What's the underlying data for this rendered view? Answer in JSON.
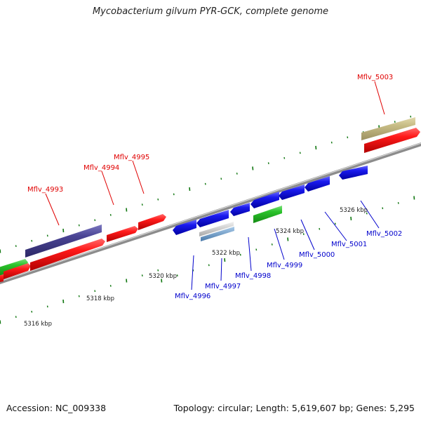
{
  "title": "Mycobacterium gilvum PYR-GCK, complete genome",
  "footer": {
    "accession": "Accession: NC_009338",
    "info": "Topology: circular; Length: 5,619,607 bp; Genes: 5,295"
  },
  "scale_labels": [
    "5316 kbp",
    "5318 kbp",
    "5320 kbp",
    "5322 kbp",
    "5324 kbp",
    "5326 kbp"
  ],
  "gene_labels": {
    "forward": [
      "Mflv_4993",
      "Mflv_4994",
      "Mflv_4995",
      "Mflv_5003"
    ],
    "reverse": [
      "Mflv_4996",
      "Mflv_4997",
      "Mflv_4998",
      "Mflv_4999",
      "Mflv_5000",
      "Mflv_5001",
      "Mflv_5002"
    ]
  },
  "colors": {
    "forward_label": "#e00000",
    "reverse_label": "#0000cc",
    "tick": "#117711",
    "backbone": "#8c8c8c",
    "gene_red": "#ee0000",
    "gene_blue": "#1a1aee",
    "gene_green": "#2bc22b",
    "gene_purple": "#4a4494",
    "gene_khaki": "#c8bd86",
    "gene_lightblue": "#6f9fc8"
  }
}
